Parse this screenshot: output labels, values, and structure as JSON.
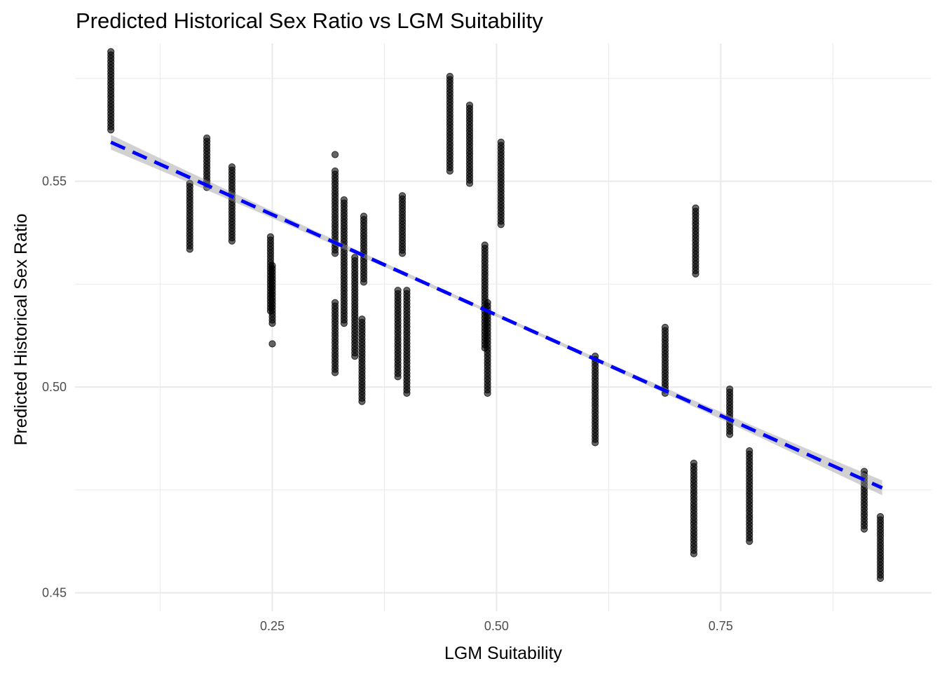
{
  "chart_data": {
    "type": "scatter",
    "title": "Predicted Historical Sex Ratio vs LGM Suitability",
    "xlabel": "LGM Suitability",
    "ylabel": "Predicted Historical Sex Ratio",
    "xlim": [
      0.03,
      0.985
    ],
    "ylim": [
      0.4455,
      0.5835
    ],
    "x_ticks": [
      0.25,
      0.5,
      0.75
    ],
    "x_tick_labels": [
      "0.25",
      "0.50",
      "0.75"
    ],
    "y_ticks": [
      0.45,
      0.5,
      0.55
    ],
    "y_tick_labels": [
      "0.45",
      "0.50",
      "0.55"
    ],
    "grid": true,
    "point_color": "#000000",
    "point_opacity": 0.6,
    "fit": {
      "type": "linear",
      "x": [
        0.07,
        0.93
      ],
      "y": [
        0.5595,
        0.4755
      ],
      "color": "#0000ff",
      "style": "dashed",
      "se_band": true,
      "se_color": "#999999"
    },
    "groups": [
      {
        "x": 0.07,
        "y_min": 0.5625,
        "y_max": 0.5815
      },
      {
        "x": 0.158,
        "y_min": 0.5335,
        "y_max": 0.5495
      },
      {
        "x": 0.177,
        "y_min": 0.5485,
        "y_max": 0.5605
      },
      {
        "x": 0.205,
        "y_min": 0.5355,
        "y_max": 0.5535
      },
      {
        "x": 0.248,
        "y_min": 0.5185,
        "y_max": 0.5365
      },
      {
        "x": 0.25,
        "y_min": 0.5155,
        "y_max": 0.5295
      },
      {
        "x": 0.25,
        "y_min": 0.5105,
        "y_max": 0.5105
      },
      {
        "x": 0.32,
        "y_min": 0.5035,
        "y_max": 0.5205
      },
      {
        "x": 0.32,
        "y_min": 0.5325,
        "y_max": 0.5525
      },
      {
        "x": 0.32,
        "y_min": 0.5565,
        "y_max": 0.5565
      },
      {
        "x": 0.33,
        "y_min": 0.5155,
        "y_max": 0.5455
      },
      {
        "x": 0.342,
        "y_min": 0.5075,
        "y_max": 0.5315
      },
      {
        "x": 0.35,
        "y_min": 0.4965,
        "y_max": 0.5165
      },
      {
        "x": 0.352,
        "y_min": 0.5255,
        "y_max": 0.5415
      },
      {
        "x": 0.39,
        "y_min": 0.5025,
        "y_max": 0.5235
      },
      {
        "x": 0.395,
        "y_min": 0.5325,
        "y_max": 0.5465
      },
      {
        "x": 0.4,
        "y_min": 0.4985,
        "y_max": 0.5235
      },
      {
        "x": 0.448,
        "y_min": 0.5525,
        "y_max": 0.5755
      },
      {
        "x": 0.47,
        "y_min": 0.5495,
        "y_max": 0.5685
      },
      {
        "x": 0.487,
        "y_min": 0.5095,
        "y_max": 0.5345
      },
      {
        "x": 0.49,
        "y_min": 0.4985,
        "y_max": 0.5205
      },
      {
        "x": 0.505,
        "y_min": 0.5395,
        "y_max": 0.5595
      },
      {
        "x": 0.61,
        "y_min": 0.4865,
        "y_max": 0.5075
      },
      {
        "x": 0.688,
        "y_min": 0.4985,
        "y_max": 0.5145
      },
      {
        "x": 0.72,
        "y_min": 0.4595,
        "y_max": 0.4815
      },
      {
        "x": 0.722,
        "y_min": 0.5275,
        "y_max": 0.5435
      },
      {
        "x": 0.76,
        "y_min": 0.4885,
        "y_max": 0.4995
      },
      {
        "x": 0.782,
        "y_min": 0.4625,
        "y_max": 0.4845
      },
      {
        "x": 0.91,
        "y_min": 0.4655,
        "y_max": 0.4795
      },
      {
        "x": 0.928,
        "y_min": 0.4535,
        "y_max": 0.4685
      }
    ]
  }
}
